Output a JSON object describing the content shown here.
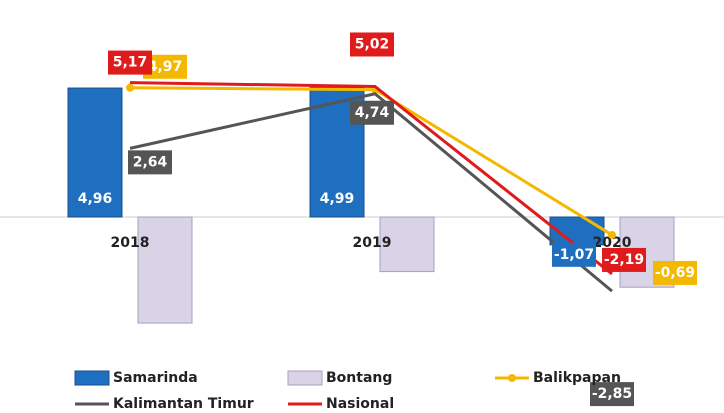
{
  "chart_data": {
    "type": "bar",
    "categories": [
      "2018",
      "2019",
      "2020"
    ],
    "ylim": [
      -5,
      6
    ],
    "series": [
      {
        "name": "Samarinda",
        "color": "#1f6fc0",
        "kind": "bar",
        "values": [
          4.96,
          4.99,
          -1.07
        ],
        "value_labels": [
          "4,96",
          "4,99",
          "-1,07"
        ]
      },
      {
        "name": "Bontang",
        "color": "#d9d3e8",
        "kind": "bar",
        "values": [
          -4.08,
          -2.1,
          -2.7
        ],
        "value_labels": [
          null,
          null,
          null
        ]
      },
      {
        "name": "Balikpapan",
        "color": "#f5b800",
        "kind": "line",
        "values": [
          4.97,
          4.9,
          -0.69
        ],
        "value_labels": [
          "4,97",
          null,
          "-0,69"
        ]
      },
      {
        "name": "Kalimantan Timur",
        "color": "#555555",
        "kind": "line",
        "values": [
          2.64,
          4.74,
          -2.85
        ],
        "value_labels": [
          "2,64",
          "4,74",
          "-2,85"
        ]
      },
      {
        "name": "Nasional",
        "color": "#e01b1b",
        "kind": "line",
        "values": [
          5.17,
          5.02,
          -2.19
        ],
        "value_labels": [
          "5,17",
          "5,02",
          "-2,19"
        ]
      }
    ]
  }
}
